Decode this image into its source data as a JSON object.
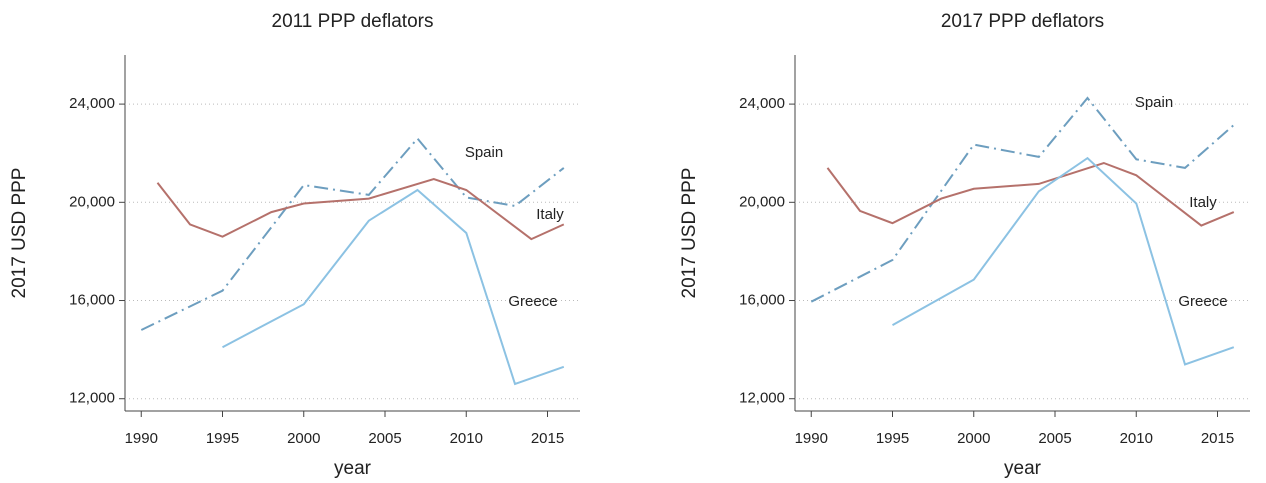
{
  "chart_data": [
    {
      "type": "line",
      "title": "2011 PPP deflators",
      "x_label": "year",
      "y_label": "2017 USD PPP",
      "xlim": [
        1989,
        2017
      ],
      "xticks": [
        1990,
        1995,
        2000,
        2005,
        2010,
        2015
      ],
      "ylim": [
        11500,
        26000
      ],
      "yticks": [
        {
          "value": 12000,
          "label": "12,000"
        },
        {
          "value": 16000,
          "label": "16,000"
        },
        {
          "value": 20000,
          "label": "20,000"
        },
        {
          "value": 24000,
          "label": "24,000"
        }
      ],
      "grid": true,
      "series": [
        {
          "name": "Spain",
          "color": "#6d9ebf",
          "dash": "dashdot",
          "x": [
            1990,
            1995,
            2000,
            2004,
            2007,
            2010,
            2013,
            2016
          ],
          "values": [
            14800,
            16400,
            20700,
            20300,
            22600,
            20200,
            19850,
            21400
          ]
        },
        {
          "name": "Italy",
          "color": "#b5716b",
          "dash": "solid",
          "x": [
            1991,
            1993,
            1995,
            1998,
            2000,
            2004,
            2008,
            2010,
            2014,
            2016
          ],
          "values": [
            20800,
            19100,
            18600,
            19600,
            19950,
            20150,
            20950,
            20500,
            18500,
            19100
          ]
        },
        {
          "name": "Greece",
          "color": "#8cc2e3",
          "dash": "solid",
          "x": [
            1995,
            2000,
            2004,
            2007,
            2010,
            2013,
            2016
          ],
          "values": [
            14100,
            15850,
            19250,
            20500,
            18750,
            12600,
            13300
          ]
        }
      ]
    },
    {
      "type": "line",
      "title": "2017 PPP deflators",
      "x_label": "year",
      "y_label": "2017 USD PPP",
      "xlim": [
        1989,
        2017
      ],
      "xticks": [
        1990,
        1995,
        2000,
        2005,
        2010,
        2015
      ],
      "ylim": [
        11500,
        26000
      ],
      "yticks": [
        {
          "value": 12000,
          "label": "12,000"
        },
        {
          "value": 16000,
          "label": "16,000"
        },
        {
          "value": 20000,
          "label": "20,000"
        },
        {
          "value": 24000,
          "label": "24,000"
        }
      ],
      "grid": true,
      "series": [
        {
          "name": "Spain",
          "color": "#6d9ebf",
          "dash": "dashdot",
          "x": [
            1990,
            1995,
            2000,
            2004,
            2007,
            2010,
            2013,
            2016
          ],
          "values": [
            15950,
            17650,
            22350,
            21850,
            24250,
            21750,
            21400,
            23150
          ]
        },
        {
          "name": "Italy",
          "color": "#b5716b",
          "dash": "solid",
          "x": [
            1991,
            1993,
            1995,
            1998,
            2000,
            2004,
            2008,
            2010,
            2014,
            2016
          ],
          "values": [
            21400,
            19650,
            19150,
            20150,
            20550,
            20750,
            21600,
            21100,
            19050,
            19600
          ]
        },
        {
          "name": "Greece",
          "color": "#8cc2e3",
          "dash": "solid",
          "x": [
            1995,
            2000,
            2004,
            2007,
            2010,
            2013,
            2016
          ],
          "values": [
            15000,
            16850,
            20450,
            21800,
            19950,
            13400,
            14100
          ]
        }
      ]
    }
  ]
}
